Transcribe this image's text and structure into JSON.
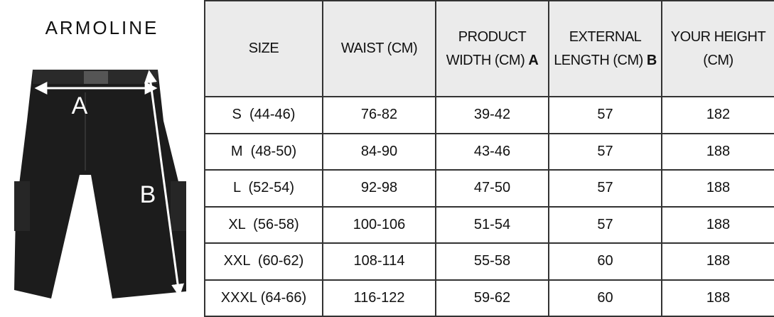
{
  "brand": "ARMOLINE",
  "image": {
    "label_a": "A",
    "label_b": "B"
  },
  "table": {
    "header": [
      {
        "text": "SIZE"
      },
      {
        "text": "WAIST (CM)"
      },
      {
        "text": "PRODUCT WIDTH (CM)",
        "mark": "A"
      },
      {
        "text": "EXTERNAL LENGTH (CM)",
        "mark": "B"
      },
      {
        "text": "YOUR HEIGHT (CM)"
      }
    ],
    "rows": [
      [
        "S  (44-46)",
        "76-82",
        "39-42",
        57,
        182
      ],
      [
        "M  (48-50)",
        "84-90",
        "43-46",
        57,
        188
      ],
      [
        "L  (52-54)",
        "92-98",
        "47-50",
        57,
        188
      ],
      [
        "XL  (56-58)",
        "100-106",
        "51-54",
        57,
        188
      ],
      [
        "XXL  (60-62)",
        "108-114",
        "55-58",
        60,
        188
      ],
      [
        "XXXL (64-66)",
        "116-122",
        "59-62",
        60,
        188
      ]
    ]
  }
}
